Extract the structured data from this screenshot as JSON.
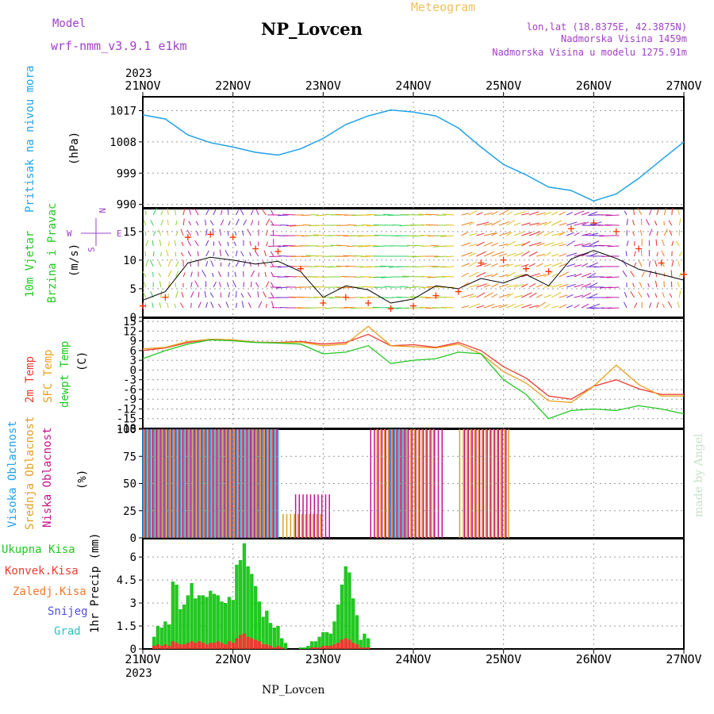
{
  "header": {
    "model_label": "Model",
    "model_name": "wrf-nmm_v3.9.1 e1km",
    "station": "NP_Lovcen",
    "product": "Meteogram",
    "lonlat": "lon,lat (18.8375E, 42.3875N)",
    "elevation": "Nadmorska Visina 1459m",
    "model_elevation": "Nadmorska Visina u modelu 1275.91m",
    "year": "2023",
    "footer_station": "NP_Lovcen",
    "credit": "made by Angel"
  },
  "colors": {
    "pressure": "#1fa3e8",
    "temp2m": "#ee3a30",
    "sfc_temp": "#e8a020",
    "dewpoint": "#22c822",
    "high_cloud": "#1fa3e8",
    "mid_cloud": "#e0a020",
    "low_cloud": "#c8108c",
    "total_precip": "#22c822",
    "convective_precip": "#ee3a30",
    "wind_speed_line": "#000000",
    "wind_gust": "#ff3300",
    "model_label": "#a040c8",
    "title_meteo": "#f0c060"
  },
  "chart_data": [
    {
      "id": "pressure",
      "type": "line",
      "ylabel": [
        "Pritisak na nivou mora",
        "(hPa)"
      ],
      "yticks": [
        990,
        999,
        1008,
        1017
      ],
      "ylim": [
        989,
        1021
      ],
      "x": [
        0,
        6,
        12,
        18,
        24,
        30,
        36,
        42,
        48,
        54,
        60,
        66,
        72,
        78,
        84,
        90,
        96,
        102,
        108,
        114,
        120,
        126,
        132,
        138,
        144
      ],
      "values": [
        1015.8,
        1014.6,
        1010,
        1007.8,
        1006.5,
        1005,
        1004.2,
        1006,
        1009,
        1013,
        1015.5,
        1017.2,
        1016.6,
        1015.5,
        1012,
        1006.5,
        1001.5,
        998.5,
        995,
        994,
        991,
        993,
        997.5,
        1002.8,
        1008
      ],
      "grid": true
    },
    {
      "id": "wind",
      "type": "line",
      "ylabel": [
        "10m Vjetar",
        "Brzina i Pravac",
        "(m/s)"
      ],
      "direction_compass": [
        "N",
        "E",
        "S",
        "W"
      ],
      "yticks": [
        0,
        5,
        10,
        15
      ],
      "ylim": [
        0,
        19
      ],
      "x": [
        0,
        6,
        12,
        18,
        24,
        30,
        36,
        42,
        48,
        54,
        60,
        66,
        72,
        78,
        84,
        90,
        96,
        102,
        108,
        114,
        120,
        126,
        132,
        138,
        144
      ],
      "speed": [
        3,
        4.5,
        9.5,
        10.5,
        10,
        9.3,
        9.8,
        8,
        3.5,
        5.5,
        4.8,
        2.5,
        3.2,
        5.5,
        5,
        6.8,
        6,
        7.5,
        5.5,
        10.2,
        11.7,
        10.3,
        8.4,
        7.5,
        6.5
      ],
      "gust": [
        2,
        3.5,
        14,
        14.5,
        14,
        12,
        11.5,
        8.5,
        2.5,
        3.5,
        2.5,
        1.5,
        2,
        3.8,
        4.5,
        9.5,
        10,
        8.5,
        8,
        15.5,
        16.5,
        15,
        12,
        9.5,
        7.5
      ],
      "grid": true
    },
    {
      "id": "temperature",
      "type": "line",
      "ylabel": [
        "2m Temp",
        "SFC Temp",
        "dewpt Temp",
        "(C)"
      ],
      "yticks": [
        -18,
        -15,
        -12,
        -9,
        -6,
        -3,
        0,
        3,
        6,
        9,
        12,
        15
      ],
      "ylim": [
        -18,
        16
      ],
      "x": [
        0,
        6,
        12,
        18,
        24,
        30,
        36,
        42,
        48,
        54,
        60,
        66,
        72,
        78,
        84,
        90,
        96,
        102,
        108,
        114,
        120,
        126,
        132,
        138,
        144
      ],
      "series": [
        {
          "name": "2m Temp",
          "values": [
            6,
            6.8,
            8.5,
            9.5,
            9.3,
            8.6,
            8.5,
            8.8,
            8,
            8.5,
            11,
            7.5,
            7.8,
            7,
            8.5,
            6,
            1,
            -2.5,
            -8,
            -9,
            -5,
            -3,
            -5.8,
            -7.5,
            -7.5
          ]
        },
        {
          "name": "SFC Temp",
          "values": [
            6.5,
            7,
            8.8,
            9.5,
            9.3,
            8.6,
            8.4,
            8.6,
            7.5,
            8,
            13.5,
            7.5,
            7.2,
            6.8,
            8,
            5,
            -0.5,
            -4,
            -9.5,
            -10,
            -5,
            1.5,
            -4.5,
            -8,
            -8
          ]
        },
        {
          "name": "dewpt Temp",
          "values": [
            3.5,
            6,
            8,
            9.3,
            9,
            8.5,
            8.3,
            8,
            5,
            5.5,
            7.5,
            2,
            3,
            3.5,
            5.5,
            5,
            -3,
            -7.5,
            -15,
            -12.5,
            -12,
            -12.5,
            -11,
            -12,
            -13.5
          ]
        }
      ],
      "grid": true
    },
    {
      "id": "cloud",
      "type": "bar",
      "ylabel": [
        "Visoka Oblacnost",
        "Srednja Oblacnost",
        "Niska Oblacnost",
        "(%)"
      ],
      "yticks": [
        0,
        25,
        50,
        75,
        100
      ],
      "ylim": [
        0,
        100
      ],
      "series": [
        {
          "name": "Visoka Oblacnost",
          "segments": [
            {
              "x0": 0,
              "x1": 36,
              "level": 100
            },
            {
              "x0": 66,
              "x1": 70,
              "level": 100
            }
          ]
        },
        {
          "name": "Srednja Oblacnost",
          "segments": [
            {
              "x0": 0,
              "x1": 36,
              "level": 100
            },
            {
              "x0": 37,
              "x1": 48,
              "level": 22
            },
            {
              "x0": 62,
              "x1": 78,
              "level": 100
            },
            {
              "x0": 84,
              "x1": 98,
              "level": 100
            }
          ]
        },
        {
          "name": "Niska Oblacnost",
          "segments": [
            {
              "x0": 0,
              "x1": 36,
              "level": 100
            },
            {
              "x0": 40,
              "x1": 50,
              "level": 40
            },
            {
              "x0": 60,
              "x1": 80,
              "level": 100
            },
            {
              "x0": 85,
              "x1": 97,
              "level": 100
            }
          ]
        }
      ],
      "grid": true
    },
    {
      "id": "precip",
      "type": "bar",
      "ylabel": [
        "1hr Precip (mm)"
      ],
      "legend": [
        "Ukupna Kisa",
        "Konvek.Kisa",
        "Zaledj.Kisa",
        "Snijeg",
        "Grad"
      ],
      "yticks": [
        0,
        1.5,
        3,
        4.5,
        6
      ],
      "ylim": [
        0,
        7.2
      ],
      "x": [
        3,
        4,
        5,
        6,
        7,
        8,
        9,
        10,
        11,
        12,
        13,
        14,
        15,
        16,
        17,
        18,
        19,
        20,
        21,
        22,
        23,
        24,
        25,
        26,
        27,
        28,
        29,
        30,
        31,
        32,
        33,
        34,
        35,
        36,
        37,
        38,
        39,
        40,
        41,
        42,
        43,
        44,
        45,
        46,
        47,
        48,
        49,
        50,
        51,
        52,
        53,
        54,
        55,
        56,
        57,
        58,
        59,
        60
      ],
      "values": [
        0.8,
        1.5,
        1.4,
        1.8,
        1.6,
        4.4,
        4.2,
        2.6,
        2.9,
        3.5,
        4.3,
        3.3,
        3.5,
        3.5,
        3.4,
        3.8,
        3.6,
        3.5,
        3.1,
        3.0,
        3.4,
        3.2,
        5.5,
        5.8,
        6.9,
        5.4,
        4.9,
        4.1,
        3.1,
        2.1,
        2.5,
        1.7,
        1.4,
        1.5,
        0.7,
        0.4,
        0,
        0,
        0,
        0.1,
        0.1,
        0.2,
        0.5,
        0.5,
        0.8,
        1.1,
        1.1,
        1.0,
        1.8,
        2.9,
        4.2,
        5.4,
        5.0,
        3.3,
        2.2,
        0.6,
        1.0,
        0.7
      ],
      "convective": [
        0.2,
        0.3,
        0.2,
        0.3,
        0.2,
        0.5,
        0.4,
        0.3,
        0.3,
        0.4,
        0.5,
        0.4,
        0.5,
        0.4,
        0.3,
        0.4,
        0.4,
        0.5,
        0.4,
        0.3,
        0.5,
        0.4,
        0.7,
        0.9,
        1.0,
        0.8,
        0.7,
        0.6,
        0.5,
        0.3,
        0.3,
        0.2,
        0.1,
        0.2,
        0.1,
        0,
        0,
        0,
        0,
        0,
        0,
        0,
        0.1,
        0.1,
        0.1,
        0.2,
        0.2,
        0.2,
        0.3,
        0.4,
        0.6,
        0.7,
        0.6,
        0.4,
        0.3,
        0.1,
        0.1,
        0.1
      ],
      "grid": true
    }
  ],
  "x_axis": {
    "x": [
      0,
      24,
      48,
      72,
      96,
      120,
      144
    ],
    "labels": [
      "21NOV",
      "22NOV",
      "23NOV",
      "24NOV",
      "25NOV",
      "26NOV",
      "27NOV"
    ]
  }
}
